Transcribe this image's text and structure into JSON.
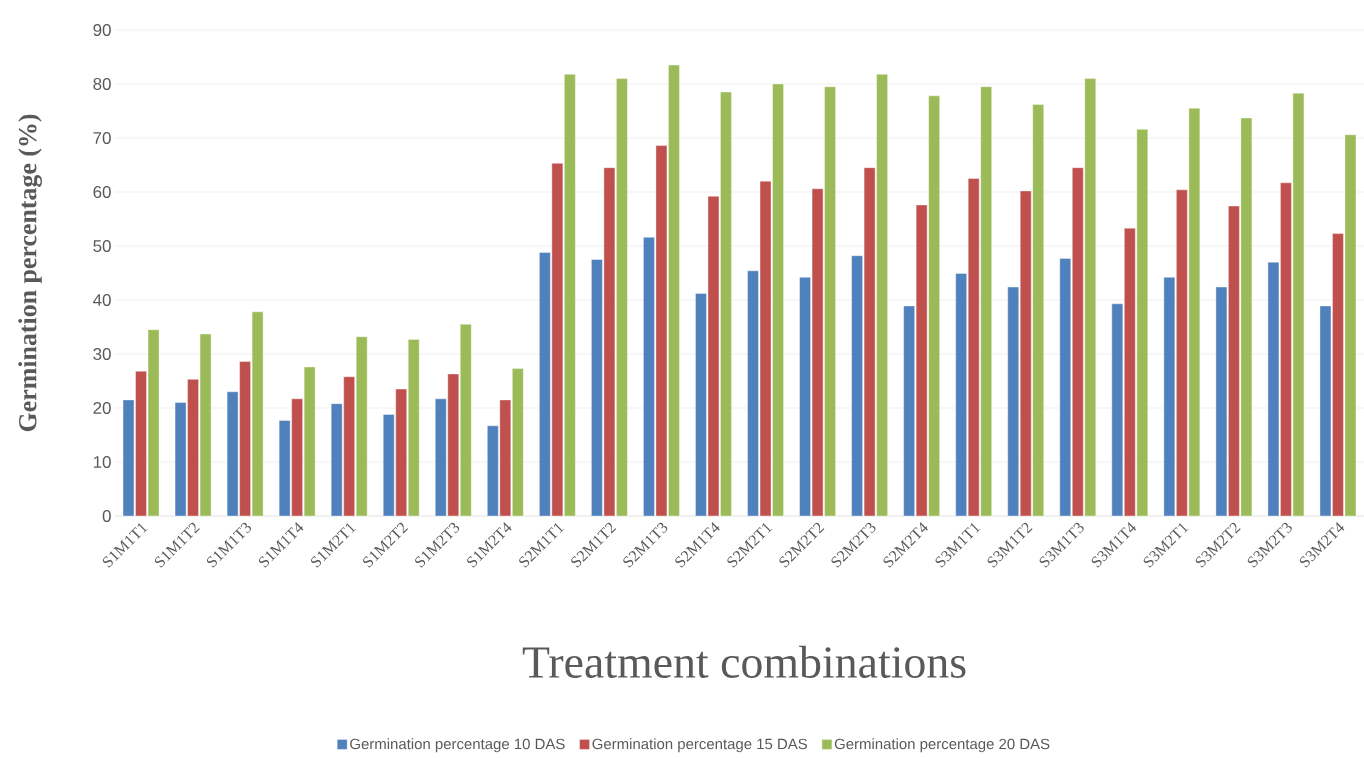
{
  "chart_data": {
    "type": "bar",
    "xlabel": "Treatment combinations",
    "ylabel": "Germination percentage (%)",
    "categories": [
      "S1M1T1",
      "S1M1T2",
      "S1M1T3",
      "S1M1T4",
      "S1M2T1",
      "S1M2T2",
      "S1M2T3",
      "S1M2T4",
      "S2M1T1",
      "S2M1T2",
      "S2M1T3",
      "S2M1T4",
      "S2M2T1",
      "S2M2T2",
      "S2M2T3",
      "S2M2T4",
      "S3M1T1",
      "S3M1T2",
      "S3M1T3",
      "S3M1T4",
      "S3M2T1",
      "S3M2T2",
      "S3M2T3",
      "S3M2T4"
    ],
    "series": [
      {
        "name": "Germination percentage 10 DAS",
        "color": "#4f81bd",
        "values": [
          21.5,
          21,
          23,
          17.7,
          20.8,
          18.8,
          21.7,
          16.7,
          48.8,
          47.5,
          51.6,
          41.2,
          45.4,
          44.2,
          48.2,
          38.9,
          44.9,
          42.4,
          47.7,
          39.3,
          44.2,
          42.4,
          47,
          38.9
        ]
      },
      {
        "name": "Germination percentage 15 DAS",
        "color": "#c0504d",
        "values": [
          26.8,
          25.3,
          28.6,
          21.7,
          25.8,
          23.5,
          26.3,
          21.5,
          65.3,
          64.5,
          68.6,
          59.2,
          62,
          60.6,
          64.5,
          57.6,
          62.5,
          60.2,
          64.5,
          53.3,
          60.4,
          57.4,
          61.7,
          52.3
        ]
      },
      {
        "name": "Germination percentage 20 DAS",
        "color": "#9bbb59",
        "values": [
          34.5,
          33.7,
          37.8,
          27.6,
          33.2,
          32.7,
          35.5,
          27.3,
          81.8,
          81,
          83.5,
          78.5,
          80,
          79.5,
          81.8,
          77.8,
          79.5,
          76.2,
          81,
          71.6,
          75.5,
          73.7,
          78.3,
          70.6
        ]
      }
    ],
    "ylim": [
      0,
      90
    ],
    "yticks": [
      0,
      10,
      20,
      30,
      40,
      50,
      60,
      70,
      80,
      90
    ],
    "grid": "y",
    "legend": "bottom"
  }
}
